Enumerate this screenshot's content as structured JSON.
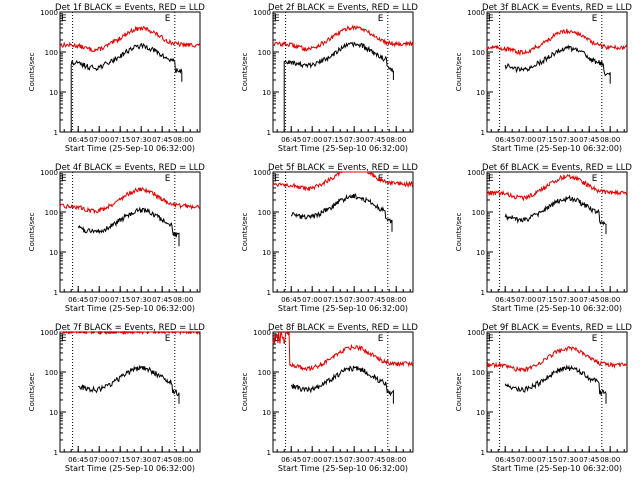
{
  "colors": {
    "events": "#000000",
    "lld": "#e00000",
    "axis": "#000000",
    "background": "#ffffff"
  },
  "shared": {
    "ylabel": "Counts/sec",
    "xlabel": "Start Time (25-Sep-10 06:32:00)",
    "yticks": [
      "1",
      "10",
      "100",
      "1000"
    ],
    "xticks": [
      "06:45",
      "07:00",
      "07:15",
      "07:30",
      "07:45",
      "08:00"
    ],
    "edge_marker": "E",
    "yscale": "log",
    "ylim": [
      1,
      1000
    ],
    "xlim_minutes": [
      0,
      100
    ],
    "vlines_minutes": [
      9,
      82
    ]
  },
  "panels": [
    {
      "title": "Det 1f BLACK = Events, RED = LLD",
      "lld_base": 150,
      "evt_base": 45,
      "evt_start": 8,
      "evt_end": 87,
      "evt_drop_start": true,
      "lld_spike": false
    },
    {
      "title": "Det 2f BLACK = Events, RED = LLD",
      "lld_base": 160,
      "evt_base": 50,
      "evt_start": 8,
      "evt_end": 86,
      "evt_drop_start": true,
      "lld_spike": false
    },
    {
      "title": "Det 3f BLACK = Events, RED = LLD",
      "lld_base": 130,
      "evt_base": 40,
      "evt_start": 13,
      "evt_end": 88,
      "evt_drop_start": false,
      "lld_spike": false
    },
    {
      "title": "Det 4f BLACK = Events, RED = LLD",
      "lld_base": 140,
      "evt_base": 35,
      "evt_start": 13,
      "evt_end": 85,
      "evt_drop_start": false,
      "lld_spike": false
    },
    {
      "title": "Det 5f BLACK = Events, RED = LLD",
      "lld_base": 500,
      "evt_base": 80,
      "evt_start": 13,
      "evt_end": 85,
      "evt_drop_start": false,
      "lld_spike": false
    },
    {
      "title": "Det 6f BLACK = Events, RED = LLD",
      "lld_base": 300,
      "evt_base": 70,
      "evt_start": 13,
      "evt_end": 85,
      "evt_drop_start": false,
      "lld_spike": false
    },
    {
      "title": "Det 7f BLACK = Events, RED = LLD",
      "lld_base": 1000,
      "evt_base": 40,
      "evt_start": 13,
      "evt_end": 85,
      "evt_drop_start": false,
      "lld_spike": false
    },
    {
      "title": "Det 8f BLACK = Events, RED = LLD",
      "lld_base": 160,
      "evt_base": 40,
      "evt_start": 13,
      "evt_end": 86,
      "evt_drop_start": false,
      "lld_spike": true
    },
    {
      "title": "Det 9f BLACK = Events, RED = LLD",
      "lld_base": 150,
      "evt_base": 40,
      "evt_start": 13,
      "evt_end": 85,
      "evt_drop_start": false,
      "lld_spike": false
    }
  ]
}
